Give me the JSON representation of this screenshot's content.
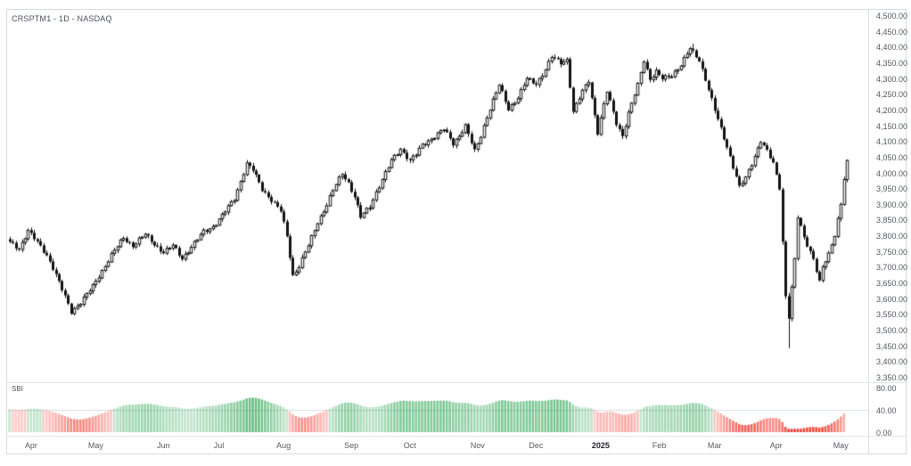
{
  "legend": {
    "symbol_line": "CRSPTM1 - 1D - NASDAQ",
    "indicator_label": "SBI"
  },
  "chart_data": {
    "type": "candlestick",
    "symbol": "CRSPTM1",
    "interval": "1D",
    "exchange": "NASDAQ",
    "grid": "off",
    "price_axis": {
      "min": 3350,
      "max": 4500,
      "step": 50,
      "tick_labels": [
        "4,500.00",
        "4,450.00",
        "4,400.00",
        "4,350.00",
        "4,300.00",
        "4,250.00",
        "4,200.00",
        "4,150.00",
        "4,100.00",
        "4,050.00",
        "4,000.00",
        "3,950.00",
        "3,900.00",
        "3,850.00",
        "3,800.00",
        "3,750.00",
        "3,700.00",
        "3,650.00",
        "3,600.00",
        "3,550.00",
        "3,500.00",
        "3,450.00",
        "3,400.00",
        "3,350.00"
      ]
    },
    "indicator": {
      "name": "SBI",
      "scale_min": 0,
      "scale_mid": 40,
      "scale_max": 80,
      "tick_labels": [
        "80.00",
        "40.00",
        "0.00"
      ]
    },
    "time_axis": {
      "ticks": [
        {
          "label": "Apr",
          "i": 7
        },
        {
          "label": "May",
          "i": 28
        },
        {
          "label": "Jun",
          "i": 50
        },
        {
          "label": "Jul",
          "i": 68
        },
        {
          "label": "Aug",
          "i": 89
        },
        {
          "label": "Sep",
          "i": 111
        },
        {
          "label": "Oct",
          "i": 130
        },
        {
          "label": "Nov",
          "i": 152
        },
        {
          "label": "Dec",
          "i": 171
        },
        {
          "label": "2025",
          "i": 192,
          "bold": true
        },
        {
          "label": "Feb",
          "i": 211
        },
        {
          "label": "Mar",
          "i": 229
        },
        {
          "label": "Apr",
          "i": 249
        },
        {
          "label": "May",
          "i": 270
        }
      ]
    },
    "n_candles": 273,
    "close_anchors": [
      [
        0,
        3780
      ],
      [
        3,
        3760
      ],
      [
        6,
        3818
      ],
      [
        9,
        3780
      ],
      [
        12,
        3740
      ],
      [
        14,
        3700
      ],
      [
        17,
        3630
      ],
      [
        20,
        3560
      ],
      [
        23,
        3590
      ],
      [
        27,
        3640
      ],
      [
        30,
        3690
      ],
      [
        33,
        3740
      ],
      [
        37,
        3795
      ],
      [
        40,
        3770
      ],
      [
        44,
        3806
      ],
      [
        47,
        3775
      ],
      [
        50,
        3748
      ],
      [
        53,
        3770
      ],
      [
        56,
        3730
      ],
      [
        59,
        3765
      ],
      [
        63,
        3815
      ],
      [
        66,
        3830
      ],
      [
        69,
        3865
      ],
      [
        73,
        3920
      ],
      [
        75,
        3975
      ],
      [
        77,
        4030
      ],
      [
        79,
        4010
      ],
      [
        82,
        3950
      ],
      [
        85,
        3915
      ],
      [
        88,
        3880
      ],
      [
        90,
        3800
      ],
      [
        92,
        3675
      ],
      [
        94,
        3705
      ],
      [
        97,
        3770
      ],
      [
        100,
        3845
      ],
      [
        103,
        3900
      ],
      [
        105,
        3945
      ],
      [
        108,
        4000
      ],
      [
        110,
        3970
      ],
      [
        112,
        3925
      ],
      [
        114,
        3860
      ],
      [
        117,
        3895
      ],
      [
        119,
        3940
      ],
      [
        122,
        4000
      ],
      [
        124,
        4040
      ],
      [
        127,
        4078
      ],
      [
        130,
        4040
      ],
      [
        132,
        4060
      ],
      [
        134,
        4090
      ],
      [
        137,
        4110
      ],
      [
        141,
        4140
      ],
      [
        144,
        4095
      ],
      [
        146,
        4120
      ],
      [
        148,
        4150
      ],
      [
        151,
        4070
      ],
      [
        153,
        4120
      ],
      [
        155,
        4180
      ],
      [
        157,
        4230
      ],
      [
        159,
        4280
      ],
      [
        162,
        4205
      ],
      [
        165,
        4240
      ],
      [
        168,
        4300
      ],
      [
        171,
        4285
      ],
      [
        174,
        4330
      ],
      [
        176,
        4370
      ],
      [
        179,
        4352
      ],
      [
        181,
        4362
      ],
      [
        183,
        4195
      ],
      [
        186,
        4260
      ],
      [
        188,
        4295
      ],
      [
        191,
        4130
      ],
      [
        194,
        4260
      ],
      [
        197,
        4160
      ],
      [
        199,
        4120
      ],
      [
        201,
        4190
      ],
      [
        204,
        4280
      ],
      [
        206,
        4360
      ],
      [
        208,
        4300
      ],
      [
        210,
        4322
      ],
      [
        212,
        4300
      ],
      [
        215,
        4312
      ],
      [
        218,
        4345
      ],
      [
        221,
        4396
      ],
      [
        224,
        4360
      ],
      [
        226,
        4300
      ],
      [
        229,
        4200
      ],
      [
        231,
        4140
      ],
      [
        233,
        4085
      ],
      [
        236,
        3990
      ],
      [
        237,
        3955
      ],
      [
        239,
        3985
      ],
      [
        241,
        4030
      ],
      [
        244,
        4105
      ],
      [
        246,
        4070
      ],
      [
        248,
        4030
      ],
      [
        250,
        3955
      ],
      [
        252,
        3610
      ],
      [
        253,
        3545
      ],
      [
        255,
        3725
      ],
      [
        256,
        3860
      ],
      [
        258,
        3795
      ],
      [
        261,
        3730
      ],
      [
        263,
        3655
      ],
      [
        264,
        3700
      ],
      [
        266,
        3740
      ],
      [
        268,
        3805
      ],
      [
        270,
        3905
      ],
      [
        271,
        3985
      ],
      [
        272,
        4035
      ]
    ],
    "wick_overrides": [
      {
        "i": 222,
        "high": 4412
      },
      {
        "i": 253,
        "low": 3444
      }
    ],
    "colors": {
      "up_fill": "#ffffff",
      "candle_line": "#131313",
      "sbi_green": "#1fa048",
      "sbi_red": "#ef3b30",
      "grid_line": "#dadde3",
      "border": "#d8dbe1",
      "axis_text": "#565b63"
    }
  }
}
